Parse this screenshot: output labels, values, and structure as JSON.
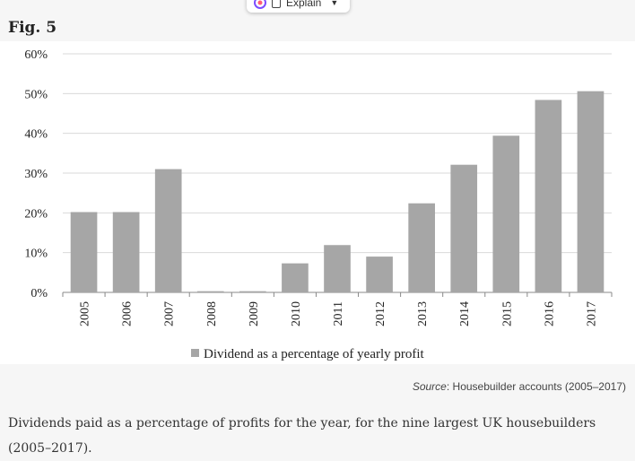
{
  "popup": {
    "explain_label": "Explain"
  },
  "figure": {
    "label": "Fig. 5",
    "source_prefix": "Source",
    "source_text": ": Housebuilder accounts (2005–2017)",
    "caption": "Dividends paid as a percentage of profits for the year, for the nine largest UK housebuilders (2005–2017)."
  },
  "colors": {
    "bar": "#a6a6a6",
    "grid": "#d9d9d9",
    "axis": "#888888"
  },
  "chart_data": {
    "type": "bar",
    "categories": [
      "2005",
      "2006",
      "2007",
      "2008",
      "2009",
      "2010",
      "2011",
      "2012",
      "2013",
      "2014",
      "2015",
      "2016",
      "2017"
    ],
    "series": [
      {
        "name": "Dividend as a percentage of yearly profit",
        "values": [
          20.2,
          20.2,
          31,
          0.3,
          0.3,
          7.3,
          11.9,
          9,
          22.4,
          32.1,
          39.4,
          48.4,
          50.6
        ]
      }
    ],
    "yticks": [
      "0%",
      "10%",
      "20%",
      "30%",
      "40%",
      "50%",
      "60%"
    ],
    "ylim": [
      0,
      60
    ],
    "grid": true,
    "legend_position": "bottom"
  }
}
